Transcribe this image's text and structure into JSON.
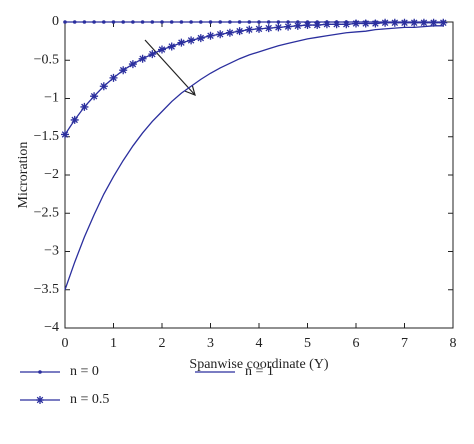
{
  "chart_data": {
    "type": "line",
    "xlabel": "Spanwise coordinate (Y)",
    "ylabel": "Microration",
    "x": [
      0,
      0.2,
      0.4,
      0.6,
      0.8,
      1,
      1.2,
      1.4,
      1.6,
      1.8,
      2,
      2.2,
      2.4,
      2.6,
      2.8,
      3,
      3.2,
      3.4,
      3.6,
      3.8,
      4,
      4.2,
      4.4,
      4.6,
      4.8,
      5,
      5.2,
      5.4,
      5.6,
      5.8,
      6,
      6.2,
      6.4,
      6.6,
      6.8,
      7,
      7.2,
      7.4,
      7.6,
      7.8
    ],
    "series": [
      {
        "name": "n = 0",
        "color": "#2b2f9e",
        "marker": "dot",
        "values": [
          0,
          0,
          0,
          0,
          0,
          0,
          0,
          0,
          0,
          0,
          0,
          0,
          0,
          0,
          0,
          0,
          0,
          0,
          0,
          0,
          0,
          0,
          0,
          0,
          0,
          0,
          0,
          0,
          0,
          0,
          0,
          0,
          0,
          0,
          0,
          0,
          0,
          0,
          0,
          0
        ]
      },
      {
        "name": "n = 0.5",
        "color": "#2b2f9e",
        "marker": "star",
        "values": [
          -1.47,
          -1.28,
          -1.11,
          -0.97,
          -0.84,
          -0.73,
          -0.63,
          -0.55,
          -0.48,
          -0.42,
          -0.36,
          -0.32,
          -0.27,
          -0.24,
          -0.21,
          -0.18,
          -0.16,
          -0.14,
          -0.12,
          -0.1,
          -0.09,
          -0.08,
          -0.07,
          -0.06,
          -0.05,
          -0.04,
          -0.04,
          -0.03,
          -0.03,
          -0.03,
          -0.02,
          -0.02,
          -0.02,
          -0.01,
          -0.01,
          -0.01,
          -0.01,
          -0.01,
          -0.01,
          -0.01
        ]
      },
      {
        "name": "n = 1",
        "color": "#2b2f9e",
        "marker": "none",
        "values": [
          -3.5,
          -3.14,
          -2.81,
          -2.52,
          -2.25,
          -2.02,
          -1.81,
          -1.62,
          -1.45,
          -1.3,
          -1.17,
          -1.04,
          -0.93,
          -0.84,
          -0.75,
          -0.67,
          -0.6,
          -0.54,
          -0.48,
          -0.43,
          -0.39,
          -0.35,
          -0.31,
          -0.28,
          -0.25,
          -0.22,
          -0.2,
          -0.18,
          -0.16,
          -0.14,
          -0.13,
          -0.12,
          -0.1,
          -0.09,
          -0.08,
          -0.07,
          -0.07,
          -0.06,
          -0.05,
          -0.05
        ]
      }
    ],
    "xlim": [
      0,
      8
    ],
    "xticks": [
      0,
      1,
      2,
      3,
      4,
      5,
      6,
      7,
      8
    ],
    "ylim": [
      -4,
      0
    ],
    "yticks": [
      {
        "value": 0,
        "label": "0"
      },
      {
        "value": -0.5,
        "label": "−0.5"
      },
      {
        "value": -1,
        "label": "−1"
      },
      {
        "value": -1.5,
        "label": "−1.5"
      },
      {
        "value": -2,
        "label": "−2"
      },
      {
        "value": -2.5,
        "label": "−2.5"
      },
      {
        "value": -3,
        "label": "−3"
      },
      {
        "value": -3.5,
        "label": "−3.5"
      },
      {
        "value": -4,
        "label": "−4"
      }
    ],
    "grid": false,
    "legend": "bottom"
  }
}
